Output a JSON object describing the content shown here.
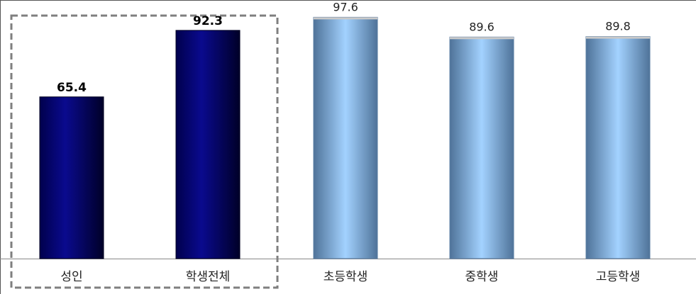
{
  "chart_data": {
    "type": "bar",
    "title": "",
    "xlabel": "",
    "ylabel": "",
    "ylim": [
      0,
      100
    ],
    "categories": [
      "성인",
      "학생전체",
      "초등학생",
      "중학생",
      "고등학생"
    ],
    "values": [
      65.4,
      92.3,
      97.6,
      89.6,
      89.8
    ],
    "value_labels": [
      "65.4",
      "92.3",
      "97.6",
      "89.6",
      "89.8"
    ],
    "highlighted_categories": [
      "성인",
      "학생전체"
    ],
    "grid": false,
    "legend": "none",
    "colors": {
      "highlight_dark": "#000033",
      "highlight_mid": "#00007a",
      "highlight_light": "#0a0a8c",
      "normal_dark": "#4a6f96",
      "normal_light": "#9ccbff",
      "axis": "#888888",
      "frame": "#555555",
      "dashed_box": "#7f7f7f"
    }
  }
}
